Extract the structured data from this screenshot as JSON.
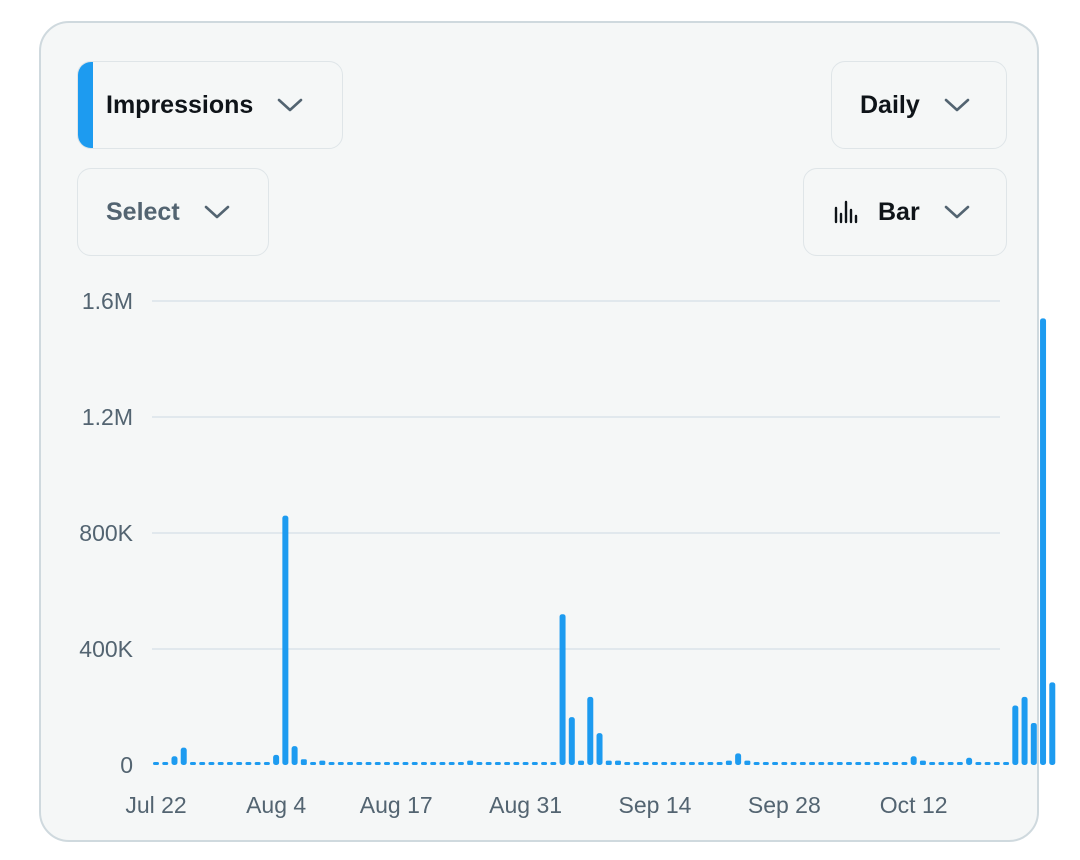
{
  "controls": {
    "metric_label": "Impressions",
    "period_label": "Daily",
    "select_label": "Select",
    "chart_type_label": "Bar"
  },
  "colors": {
    "accent": "#1d9bf0",
    "grid": "#e1e8ed",
    "axis_text": "#536471",
    "border": "#cfd9de"
  },
  "icons": {
    "dropdown": "chevron-down-icon",
    "chart_type": "bar-chart-icon"
  },
  "chart_data": {
    "type": "bar",
    "title": "",
    "xlabel": "",
    "ylabel": "",
    "ylim": [
      0,
      1600000
    ],
    "yticks": [
      {
        "value": 0,
        "label": "0"
      },
      {
        "value": 400000,
        "label": "400K"
      },
      {
        "value": 800000,
        "label": "800K"
      },
      {
        "value": 1200000,
        "label": "1.2M"
      },
      {
        "value": 1600000,
        "label": "1.6M"
      }
    ],
    "xticks": [
      {
        "index": 0,
        "label": "Jul 22"
      },
      {
        "index": 13,
        "label": "Aug 4"
      },
      {
        "index": 26,
        "label": "Aug 17"
      },
      {
        "index": 40,
        "label": "Aug 31"
      },
      {
        "index": 54,
        "label": "Sep 14"
      },
      {
        "index": 68,
        "label": "Sep 28"
      },
      {
        "index": 82,
        "label": "Oct 12"
      }
    ],
    "grid": true,
    "series": [
      {
        "start_date": "Jul 22",
        "values": [
          5000,
          5000,
          30000,
          60000,
          3000,
          3000,
          3000,
          3000,
          3000,
          3000,
          10000,
          5000,
          5000,
          35000,
          860000,
          65000,
          20000,
          5000,
          15000,
          5000,
          10000,
          8000,
          5000,
          5000,
          8000,
          5000,
          5000,
          5000,
          5000,
          5000,
          5000,
          5000,
          5000,
          5000,
          15000,
          10000,
          5000,
          5000,
          5000,
          8000,
          5000,
          5000,
          5000,
          5000,
          520000,
          165000,
          15000,
          235000,
          110000,
          15000,
          15000,
          5000,
          5000,
          5000,
          5000,
          5000,
          5000,
          5000,
          5000,
          5000,
          5000,
          5000,
          15000,
          40000,
          15000,
          10000,
          5000,
          5000,
          5000,
          5000,
          5000,
          8000,
          5000,
          5000,
          5000,
          5000,
          5000,
          5000,
          5000,
          5000,
          5000,
          5000,
          30000,
          15000,
          5000,
          5000,
          5000,
          5000,
          25000,
          10000,
          5000,
          5000,
          5000,
          205000,
          235000,
          145000,
          1540000,
          285000
        ]
      }
    ]
  }
}
